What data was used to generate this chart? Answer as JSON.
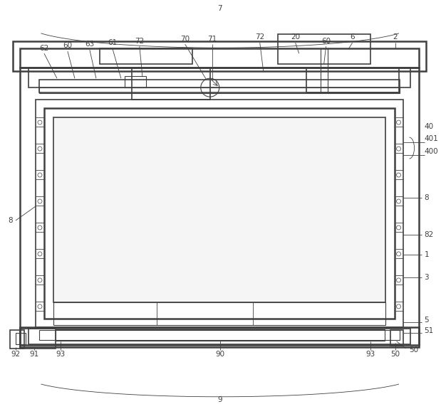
{
  "bg_color": "#ffffff",
  "line_color": "#404040",
  "figsize": [
    6.19,
    5.75
  ],
  "dpi": 100
}
